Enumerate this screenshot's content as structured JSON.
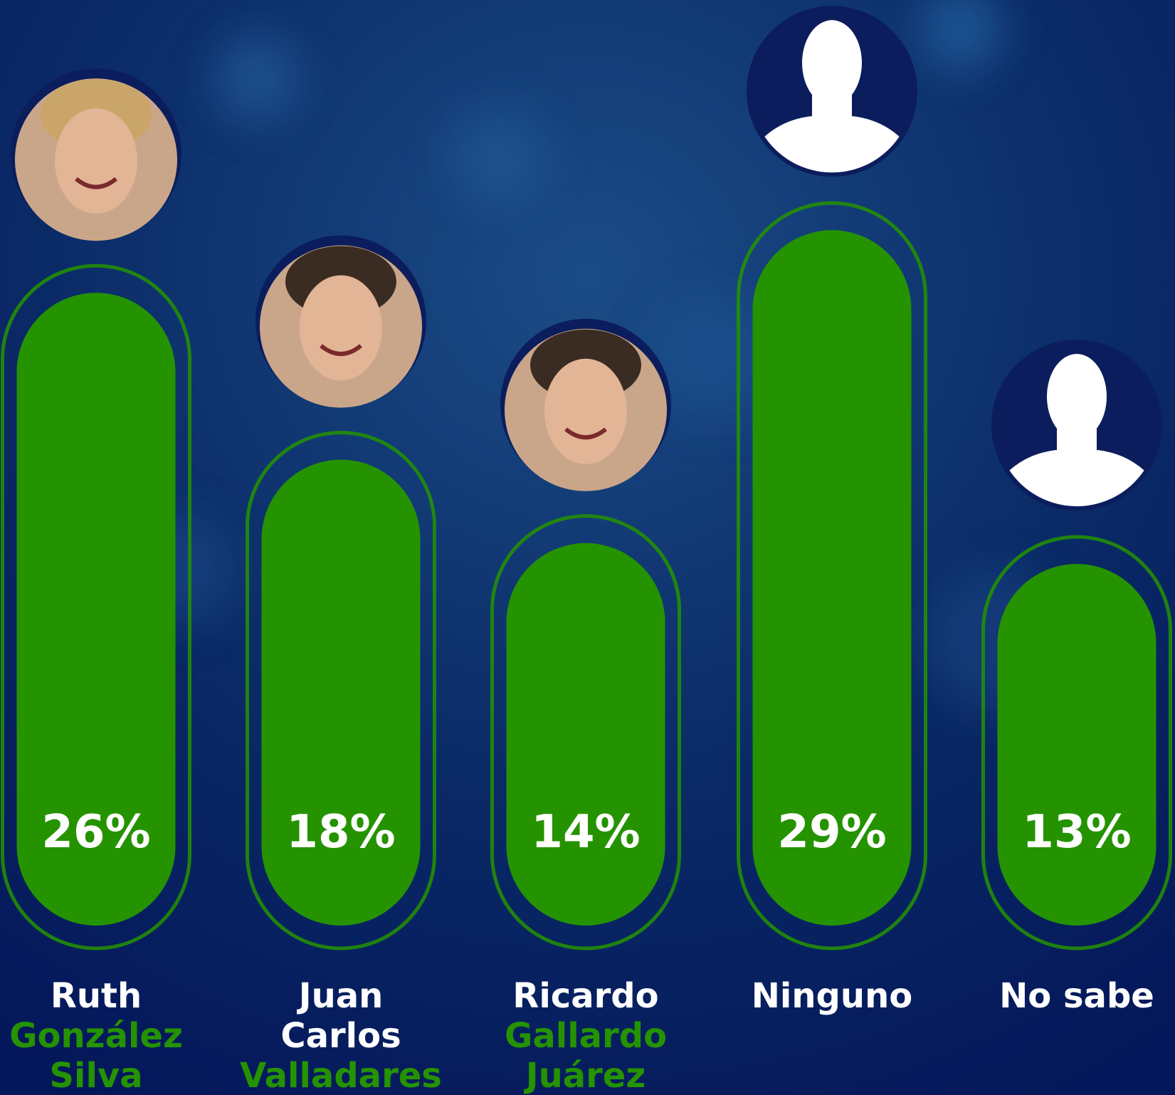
{
  "chart_data": {
    "type": "bar",
    "categories": [
      "Ruth",
      "Juan Carlos",
      "Ricardo",
      "Ninguno",
      "No sabe"
    ],
    "category_surnames": [
      "González Silva",
      "Valladares",
      "Gallardo Juárez",
      null,
      null
    ],
    "values": [
      26,
      18,
      14,
      29,
      13
    ],
    "value_labels": [
      "26%",
      "18%",
      "14%",
      "29%",
      "13%"
    ],
    "color": "#259300"
  }
}
